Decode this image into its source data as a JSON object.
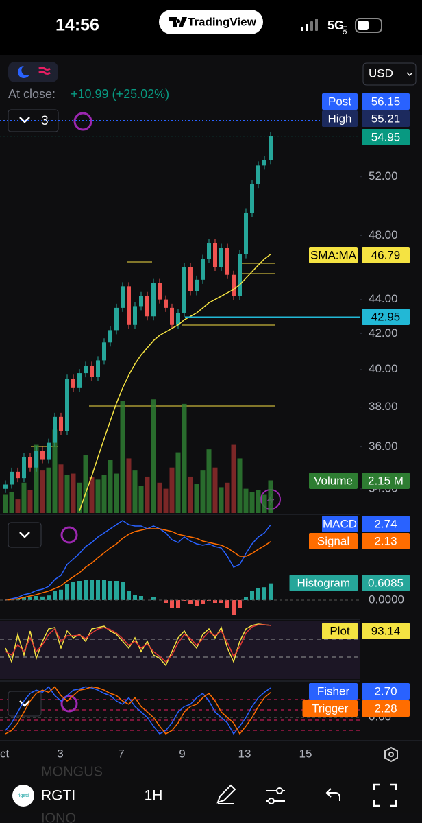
{
  "status_bar": {
    "time": "14:56",
    "app": "TradingView",
    "network": "5G",
    "network_sup": "UC"
  },
  "header": {
    "at_close_label": "At close:",
    "change": "+10.99 (+25.02%)",
    "indicator_count": "3",
    "currency": "USD"
  },
  "chart_data": [
    {
      "type": "candlestick",
      "log_scale": true,
      "ylim": [
        32.9,
        61.1
      ],
      "yticks": [
        {
          "value": 34,
          "label": "34.00"
        },
        {
          "value": 36,
          "label": "36.00"
        },
        {
          "value": 38,
          "label": "38.00"
        },
        {
          "value": 40,
          "label": "40.00"
        },
        {
          "value": 42,
          "label": "42.00"
        },
        {
          "value": 44,
          "label": "44.00"
        },
        {
          "value": 48,
          "label": "48.00"
        },
        {
          "value": 52,
          "label": "52.00"
        }
      ],
      "colors": {
        "up": "#26a69a",
        "down": "#ef5350"
      },
      "open": [
        34.0,
        34.2,
        34.8,
        34.5,
        35.5,
        35.0,
        35.8,
        35.4,
        36.2,
        37.5,
        36.8,
        39.5,
        39.0,
        39.8,
        40.2,
        39.6,
        40.5,
        41.5,
        42.2,
        43.5,
        44.8,
        42.5,
        43.6,
        44.2,
        43.0,
        45.0,
        44.0,
        43.5,
        42.5,
        43.2,
        46.0,
        44.5,
        45.2,
        46.5,
        47.5,
        46.0,
        47.2,
        45.5,
        44.2,
        46.8,
        49.5,
        51.5,
        52.8,
        53.2
      ],
      "close": [
        34.2,
        34.8,
        34.5,
        35.5,
        35.0,
        35.8,
        35.4,
        36.2,
        37.5,
        36.8,
        39.5,
        39.0,
        39.8,
        40.2,
        39.6,
        40.5,
        41.5,
        42.2,
        43.5,
        44.8,
        42.5,
        43.6,
        44.2,
        43.0,
        45.0,
        44.0,
        43.5,
        42.5,
        43.2,
        46.0,
        44.5,
        45.2,
        46.5,
        47.5,
        46.0,
        47.2,
        45.5,
        44.2,
        46.8,
        49.5,
        51.5,
        52.8,
        53.2,
        54.95
      ],
      "sma": {
        "name": "SMA:MA",
        "color": "#f5e342",
        "values": [
          null,
          null,
          null,
          null,
          null,
          null,
          null,
          null,
          null,
          null,
          null,
          null,
          33.0,
          33.8,
          34.6,
          35.5,
          36.4,
          37.3,
          38.2,
          39.0,
          39.7,
          40.3,
          40.8,
          41.2,
          41.6,
          41.9,
          42.1,
          42.3,
          42.5,
          42.8,
          43.0,
          43.2,
          43.5,
          43.8,
          44.0,
          44.2,
          44.4,
          44.6,
          44.9,
          45.3,
          45.7,
          46.1,
          46.5,
          46.79
        ]
      },
      "volume": {
        "name": "Volume",
        "ylim": [
          0,
          30
        ],
        "value_label": "2.15 M",
        "color": "#2e7d32",
        "values": [
          1.2,
          1.4,
          0.9,
          2.0,
          1.5,
          4.5,
          2.8,
          3.0,
          5.5,
          3.2,
          2.5,
          2.6,
          2.0,
          3.8,
          2.4,
          2.2,
          2.5,
          3.5,
          2.6,
          7.4,
          3.6,
          2.8,
          1.8,
          2.4,
          7.5,
          2.0,
          1.6,
          3.0,
          4.0,
          7.2,
          2.4,
          1.9,
          2.8,
          4.2,
          3.0,
          1.7,
          2.0,
          4.5,
          3.6,
          1.6,
          1.4,
          1.5,
          1.2,
          2.15
        ]
      },
      "levels": [
        {
          "name": "Post",
          "value": 56.15,
          "color": "#2962ff"
        },
        {
          "name": "High",
          "value": 55.21,
          "color": "#1c2a5e"
        },
        {
          "value": 54.95,
          "color": "#089981"
        },
        {
          "name": "SMA:MA",
          "value": 46.79,
          "color": "#f5e342"
        },
        {
          "value": 42.95,
          "color": "#22b8d6"
        }
      ]
    },
    {
      "type": "line",
      "ylim": [
        -0.625,
        3.075
      ],
      "yticks": [
        {
          "value": 0,
          "label": "0.0000"
        }
      ],
      "series": [
        {
          "name": "MACD",
          "color": "#2962ff",
          "values": [
            0.0,
            0.05,
            0.1,
            0.2,
            0.25,
            0.35,
            0.4,
            0.5,
            0.75,
            0.9,
            1.3,
            1.5,
            1.7,
            1.95,
            2.1,
            2.3,
            2.45,
            2.6,
            2.75,
            2.9,
            2.75,
            2.7,
            2.7,
            2.6,
            2.7,
            2.6,
            2.45,
            2.2,
            2.1,
            2.3,
            2.15,
            2.05,
            2.0,
            2.05,
            1.95,
            1.9,
            1.6,
            1.2,
            1.3,
            1.7,
            2.05,
            2.3,
            2.45,
            2.74
          ]
        },
        {
          "name": "Signal",
          "color": "#ff6d00",
          "values": [
            0.0,
            0.02,
            0.05,
            0.1,
            0.15,
            0.2,
            0.27,
            0.33,
            0.42,
            0.52,
            0.7,
            0.85,
            1.0,
            1.2,
            1.35,
            1.55,
            1.72,
            1.9,
            2.05,
            2.25,
            2.4,
            2.5,
            2.55,
            2.6,
            2.6,
            2.6,
            2.55,
            2.5,
            2.4,
            2.35,
            2.3,
            2.25,
            2.15,
            2.1,
            2.05,
            2.0,
            1.9,
            1.75,
            1.6,
            1.6,
            1.7,
            1.85,
            1.98,
            2.13
          ]
        }
      ],
      "histogram": {
        "name": "Histogram",
        "color": "#26a69a",
        "color_neg": "#ef5350",
        "values": [
          0,
          0.03,
          0.05,
          0.1,
          0.1,
          0.15,
          0.13,
          0.17,
          0.33,
          0.38,
          0.6,
          0.65,
          0.7,
          0.75,
          0.75,
          0.75,
          0.73,
          0.7,
          0.7,
          0.65,
          0.35,
          0.2,
          0.15,
          0,
          0.1,
          0,
          -0.1,
          -0.3,
          -0.3,
          -0.05,
          -0.15,
          -0.2,
          -0.15,
          -0.05,
          -0.1,
          -0.1,
          -0.3,
          -0.55,
          -0.3,
          0.1,
          0.35,
          0.45,
          0.47,
          0.6085
        ]
      }
    },
    {
      "type": "line",
      "ylim": [
        15,
        100
      ],
      "series": [
        {
          "name": "Plot",
          "color": "#f5e342",
          "values": [
            60,
            40,
            80,
            50,
            85,
            45,
            70,
            88,
            90,
            60,
            85,
            75,
            80,
            70,
            88,
            90,
            92,
            85,
            80,
            70,
            60,
            75,
            55,
            70,
            50,
            45,
            35,
            55,
            75,
            85,
            70,
            60,
            80,
            88,
            75,
            90,
            60,
            40,
            70,
            88,
            93,
            95,
            94,
            93.14
          ]
        },
        {
          "color": "#e53935",
          "values": [
            55,
            50,
            65,
            55,
            75,
            55,
            65,
            80,
            88,
            70,
            78,
            78,
            79,
            74,
            82,
            88,
            90,
            87,
            82,
            74,
            64,
            70,
            60,
            66,
            55,
            48,
            40,
            50,
            68,
            80,
            74,
            64,
            74,
            84,
            78,
            85,
            68,
            48,
            62,
            82,
            91,
            94,
            94,
            93
          ]
        }
      ]
    },
    {
      "type": "line",
      "ylim": [
        -2,
        3.2
      ],
      "yticks": [
        {
          "value": 0,
          "label": "0.00"
        }
      ],
      "series": [
        {
          "name": "Fisher",
          "color": "#2962ff",
          "value_label": "2.70",
          "values": [
            -1.2,
            -0.5,
            0.5,
            1.5,
            2.2,
            2.5,
            2.3,
            2.8,
            2.0,
            1.5,
            2.0,
            2.5,
            2.6,
            2.8,
            2.7,
            2.5,
            2.2,
            2.0,
            1.5,
            1.2,
            1.8,
            1.0,
            0.5,
            0.0,
            -0.8,
            -1.5,
            -1.2,
            -0.5,
            0.5,
            1.0,
            1.2,
            1.8,
            2.2,
            1.5,
            0.5,
            0.0,
            -0.5,
            -1.5,
            -0.8,
            0.0,
            1.0,
            1.8,
            2.3,
            2.7
          ]
        },
        {
          "name": "Trigger",
          "color": "#ff6d00",
          "values": [
            -1.5,
            -1.2,
            -0.5,
            0.5,
            1.5,
            2.2,
            2.5,
            2.3,
            2.8,
            2.0,
            1.5,
            2.0,
            2.5,
            2.6,
            2.8,
            2.7,
            2.5,
            2.2,
            2.0,
            1.5,
            1.2,
            1.8,
            1.0,
            0.5,
            0.0,
            -0.8,
            -1.5,
            -1.2,
            -0.5,
            0.5,
            1.0,
            1.2,
            1.8,
            2.2,
            1.5,
            0.5,
            0.0,
            -0.5,
            -1.5,
            -0.8,
            0.0,
            1.0,
            1.8,
            2.28
          ]
        }
      ]
    }
  ],
  "x_axis": {
    "labels": [
      "ct",
      "3",
      "7",
      "9",
      "13",
      "15"
    ]
  },
  "toolbar": {
    "logo": "rigetti",
    "symbol": "RGTI",
    "interval": "1H"
  },
  "watchlist_peek": [
    "MONGUS",
    "IONQ"
  ]
}
